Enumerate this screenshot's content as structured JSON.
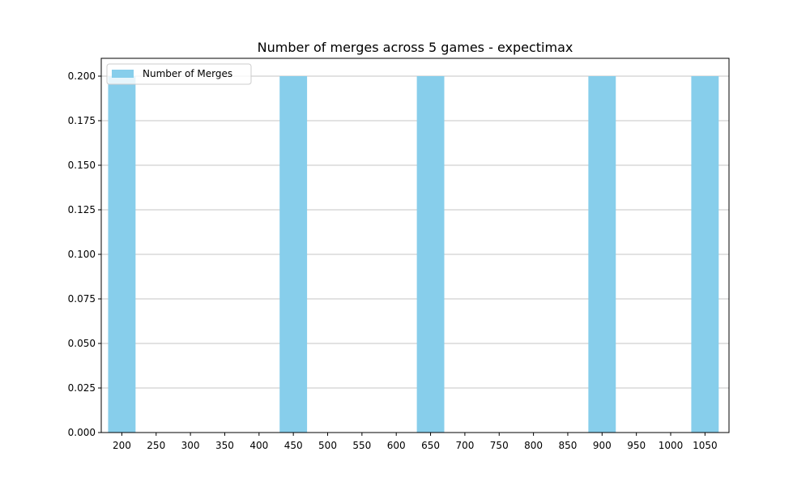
{
  "chart_data": {
    "type": "bar",
    "title": "Number of merges across 5 games - expectimax",
    "xlabel": "",
    "ylabel": "",
    "x_ticks": [
      200,
      250,
      300,
      350,
      400,
      450,
      500,
      550,
      600,
      650,
      700,
      750,
      800,
      850,
      900,
      950,
      1000,
      1050
    ],
    "xlim": [
      170,
      1085
    ],
    "ylim": [
      0,
      0.21
    ],
    "y_ticks": [
      "0.000",
      "0.025",
      "0.050",
      "0.075",
      "0.100",
      "0.125",
      "0.150",
      "0.175",
      "0.200"
    ],
    "bar_width": 40,
    "series": [
      {
        "name": "Number of Merges",
        "color": "#87CEEB",
        "x": [
          200,
          450,
          650,
          900,
          1050
        ],
        "values": [
          0.2,
          0.2,
          0.2,
          0.2,
          0.2
        ]
      }
    ],
    "grid": "y",
    "legend_position": "top-left"
  }
}
